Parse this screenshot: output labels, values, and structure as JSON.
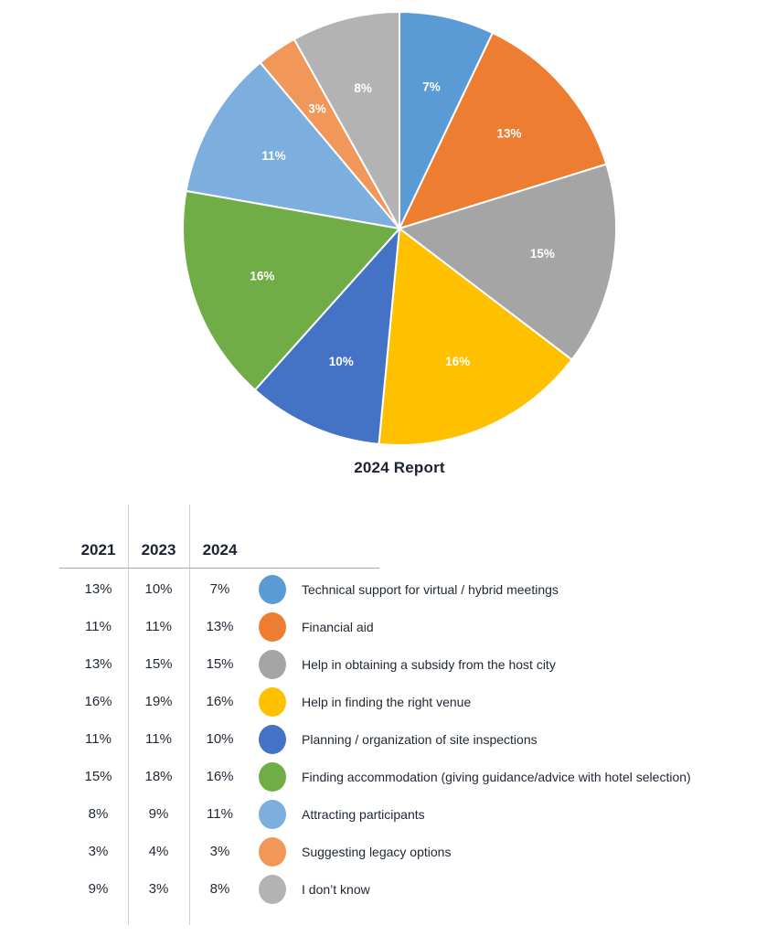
{
  "chart_data": {
    "type": "pie",
    "title": "2024 Report",
    "start_angle_deg": 0,
    "direction": "clockwise",
    "legend_position": "table-below",
    "label_style": "percent-inside-slice",
    "label_color": "#ffffff",
    "slices": [
      {
        "label": "Technical support for virtual / hybrid meetings",
        "value_pct": 7,
        "display": "7%",
        "color": "#5B9BD5"
      },
      {
        "label": "Financial aid",
        "value_pct": 13,
        "display": "13%",
        "color": "#ED7D31"
      },
      {
        "label": "Help in obtaining a subsidy from the host city",
        "value_pct": 15,
        "display": "15%",
        "color": "#A5A5A5"
      },
      {
        "label": "Help in finding the right venue",
        "value_pct": 16,
        "display": "16%",
        "color": "#FFC000"
      },
      {
        "label": "Planning / organization of site inspections",
        "value_pct": 10,
        "display": "10%",
        "color": "#4472C4"
      },
      {
        "label": "Finding accommodation (giving guidance/advice with hotel selection)",
        "value_pct": 16,
        "display": "16%",
        "color": "#70AD47"
      },
      {
        "label": "Attracting participants",
        "value_pct": 11,
        "display": "11%",
        "color": "#7CAFDD"
      },
      {
        "label": "Suggesting legacy options",
        "value_pct": 3,
        "display": "3%",
        "color": "#F1975A"
      },
      {
        "label": "I don’t know",
        "value_pct": 8,
        "display": "8%",
        "color": "#B3B3B3"
      }
    ]
  },
  "table": {
    "headers": [
      "2021",
      "2023",
      "2024"
    ],
    "rows": [
      {
        "y2021": "13%",
        "y2023": "10%",
        "y2024": "7%",
        "color": "#5B9BD5",
        "label": "Technical support for virtual / hybrid meetings"
      },
      {
        "y2021": "11%",
        "y2023": "11%",
        "y2024": "13%",
        "color": "#ED7D31",
        "label": "Financial aid"
      },
      {
        "y2021": "13%",
        "y2023": "15%",
        "y2024": "15%",
        "color": "#A5A5A5",
        "label": "Help in obtaining a subsidy from the host city"
      },
      {
        "y2021": "16%",
        "y2023": "19%",
        "y2024": "16%",
        "color": "#FFC000",
        "label": "Help in finding the right venue"
      },
      {
        "y2021": "11%",
        "y2023": "11%",
        "y2024": "10%",
        "color": "#4472C4",
        "label": "Planning / organization of site inspections"
      },
      {
        "y2021": "15%",
        "y2023": "18%",
        "y2024": "16%",
        "color": "#70AD47",
        "label": "Finding accommodation (giving guidance/advice with hotel selection)"
      },
      {
        "y2021": "8%",
        "y2023": "9%",
        "y2024": "11%",
        "color": "#7CAFDD",
        "label": "Attracting participants"
      },
      {
        "y2021": "3%",
        "y2023": "4%",
        "y2024": "3%",
        "color": "#F1975A",
        "label": "Suggesting legacy options"
      },
      {
        "y2021": "9%",
        "y2023": "3%",
        "y2024": "8%",
        "color": "#B3B3B3",
        "label": "I don’t know"
      }
    ]
  }
}
